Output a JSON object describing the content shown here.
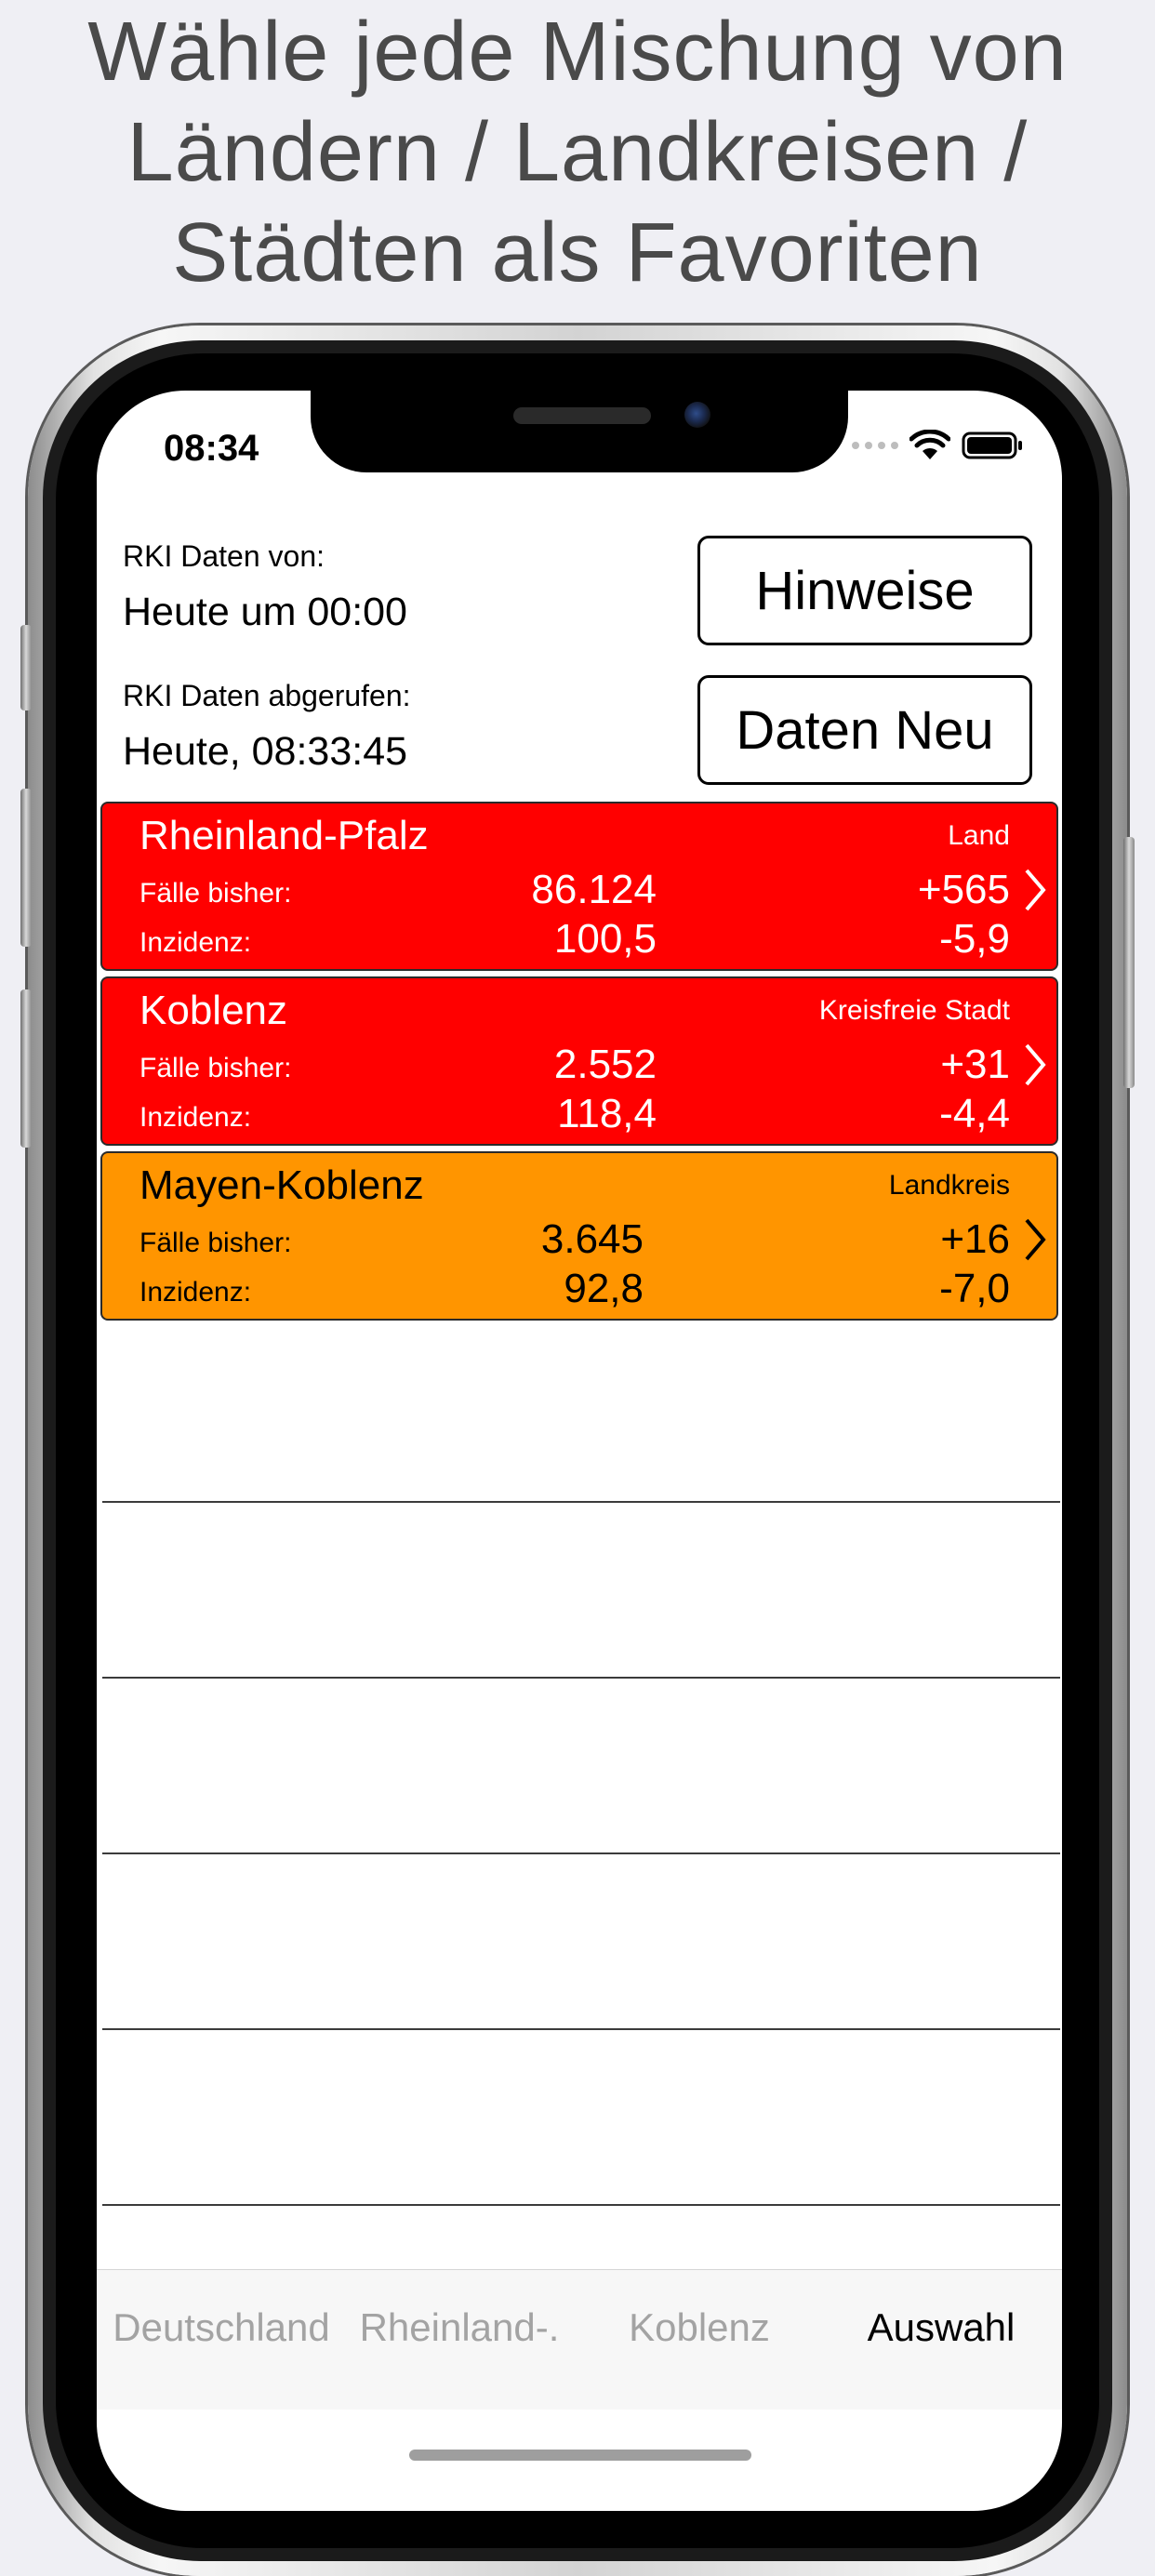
{
  "headline": {
    "line1": "Wähle jede Mischung von",
    "line2": "Ländern / Landkreisen /",
    "line3": "Städten als Favoriten"
  },
  "status_bar": {
    "time": "08:34"
  },
  "info": {
    "data_from_label": "RKI Daten von:",
    "data_from_value": "Heute um 00:00",
    "fetched_label": "RKI Daten abgerufen:",
    "fetched_value": "Heute, 08:33:45"
  },
  "buttons": {
    "notes_label": "Hinweise",
    "refresh_label": "Daten Neu"
  },
  "regions": [
    {
      "name": "Rheinland-Pfalz",
      "type": "Land",
      "cases_label": "Fälle bisher:",
      "cases": "86.124",
      "cases_delta": "+565",
      "incidence_label": "Inzidenz:",
      "incidence": "100,5",
      "incidence_delta": "-5,9",
      "color": "#ff0000"
    },
    {
      "name": "Koblenz",
      "type": "Kreisfreie Stadt",
      "cases_label": "Fälle bisher:",
      "cases": "2.552",
      "cases_delta": "+31",
      "incidence_label": "Inzidenz:",
      "incidence": "118,4",
      "incidence_delta": "-4,4",
      "color": "#ff0000"
    },
    {
      "name": "Mayen-Koblenz",
      "type": "Landkreis",
      "cases_label": "Fälle bisher:",
      "cases": "3.645",
      "cases_delta": "+16",
      "incidence_label": "Inzidenz:",
      "incidence": "92,8",
      "incidence_delta": "-7,0",
      "color": "#ff9500"
    }
  ],
  "tabs": [
    {
      "label": "Deutschland",
      "active": false
    },
    {
      "label": "Rheinland-.",
      "active": false
    },
    {
      "label": "Koblenz",
      "active": false
    },
    {
      "label": "Auswahl",
      "active": true
    }
  ]
}
